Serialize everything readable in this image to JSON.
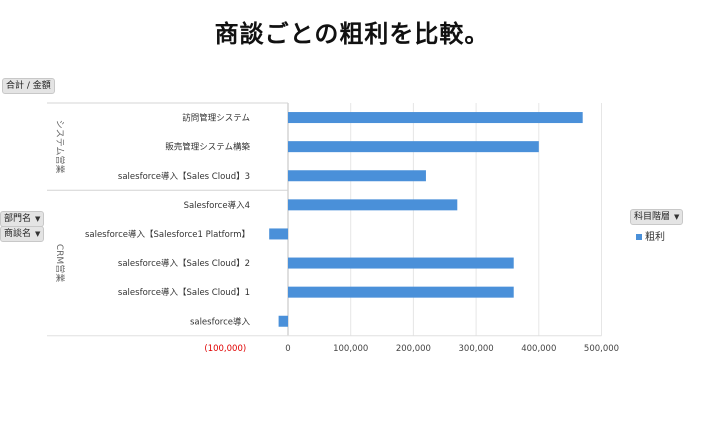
{
  "title": "商談ごとの粗利を比較。",
  "field_buttons": {
    "value_field": "合計 / 金額",
    "row_field_1": "部門名",
    "row_field_2": "商談名",
    "column_field": "科目階層"
  },
  "chart_data": {
    "type": "bar",
    "orientation": "horizontal",
    "groups": [
      {
        "name": "システム営業",
        "categories": [
          "訪問管理システム",
          "販売管理システム構築",
          "salesforce導入【Sales Cloud】3"
        ]
      },
      {
        "name": "CRM営業",
        "categories": [
          "Salesforce導入4",
          "salesforce導入【Salesforce1 Platform】",
          "salesforce導入【Sales Cloud】2",
          "salesforce導入【Sales Cloud】1",
          "salesforce導入"
        ]
      }
    ],
    "series": [
      {
        "name": "粗利",
        "color": "#4a90d9",
        "values": [
          470000,
          400000,
          220000,
          270000,
          -30000,
          360000,
          360000,
          -15000
        ]
      }
    ],
    "xlim": [
      -100000,
      500000
    ],
    "xticks": [
      {
        "value": -100000,
        "label": "(100,000)",
        "color": "#e00000"
      },
      {
        "value": 0,
        "label": "0"
      },
      {
        "value": 100000,
        "label": "100,000"
      },
      {
        "value": 200000,
        "label": "200,000"
      },
      {
        "value": 300000,
        "label": "300,000"
      },
      {
        "value": 400000,
        "label": "400,000"
      },
      {
        "value": 500000,
        "label": "500,000"
      }
    ],
    "legend_position": "right",
    "grid": true
  }
}
